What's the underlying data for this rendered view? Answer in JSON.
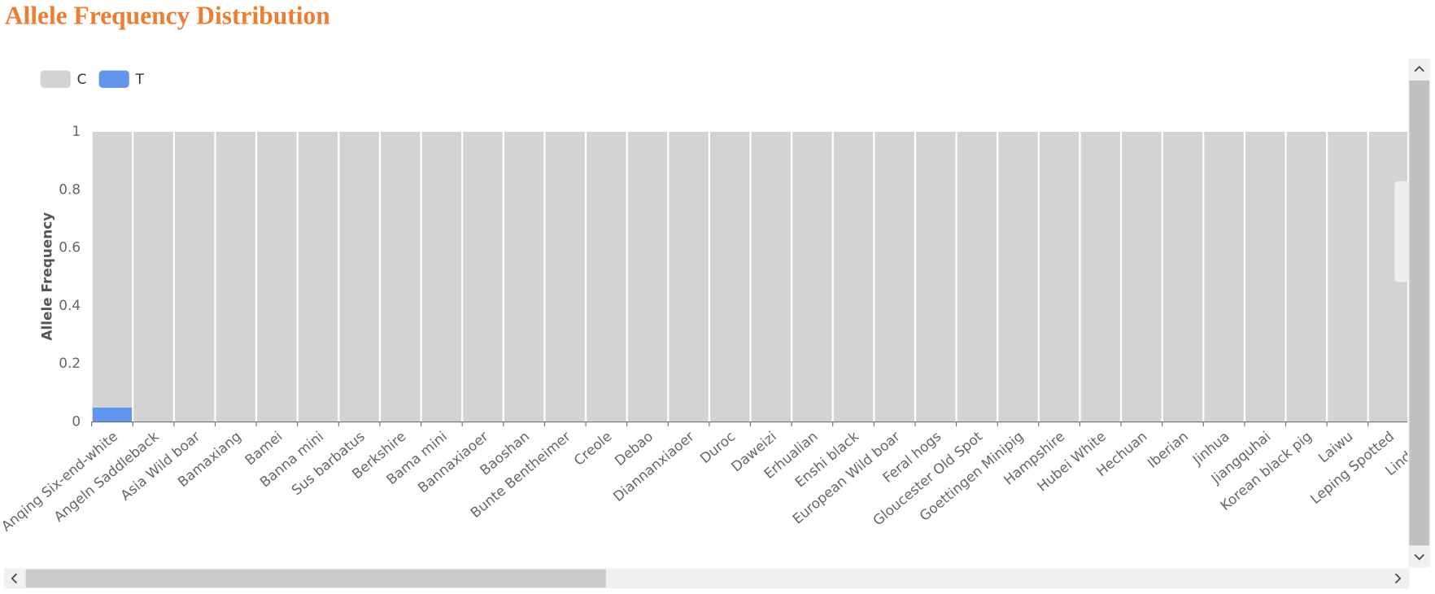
{
  "chart_data": {
    "type": "bar",
    "stacked": true,
    "title": "Allele Frequency Distribution",
    "y_label": "Allele Frequency",
    "categories": [
      "Anqing Six-end-white",
      "Angeln Saddleback",
      "Asia Wild boar",
      "Bamaxiang",
      "Bamei",
      "Banna mini",
      "Sus barbatus",
      "Berkshire",
      "Bama mini",
      "Bannaxiaoer",
      "Baoshan",
      "Bunte Bentheimer",
      "Creole",
      "Debao",
      "Diannanxiaoer",
      "Duroc",
      "Daweizi",
      "Erhualian",
      "Enshi black",
      "European Wild boar",
      "Feral hogs",
      "Gloucester Old Spot",
      "Goettingen Minipig",
      "Hampshire",
      "Hubei White",
      "Hechuan",
      "Iberian",
      "Jinhua",
      "Jiangquhai",
      "Korean black pig",
      "Laiwu",
      "Leping Spotted",
      "Linderod"
    ],
    "series": [
      {
        "name": "C",
        "color": "#d3d3d3",
        "values": [
          0.95,
          1,
          1,
          1,
          1,
          1,
          1,
          1,
          1,
          1,
          1,
          1,
          1,
          1,
          1,
          1,
          1,
          1,
          1,
          1,
          1,
          1,
          1,
          1,
          1,
          1,
          1,
          1,
          1,
          1,
          1,
          1,
          1
        ]
      },
      {
        "name": "T",
        "color": "#6495ed",
        "values": [
          0.05,
          0,
          0,
          0,
          0,
          0,
          0,
          0,
          0,
          0,
          0,
          0,
          0,
          0,
          0,
          0,
          0,
          0,
          0,
          0,
          0,
          0,
          0,
          0,
          0,
          0,
          0,
          0,
          0,
          0,
          0,
          0,
          0
        ]
      }
    ],
    "ylim": [
      0,
      1
    ],
    "yticks": [
      0,
      0.2,
      0.4,
      0.6,
      0.8,
      1
    ],
    "legend": "top-left"
  }
}
